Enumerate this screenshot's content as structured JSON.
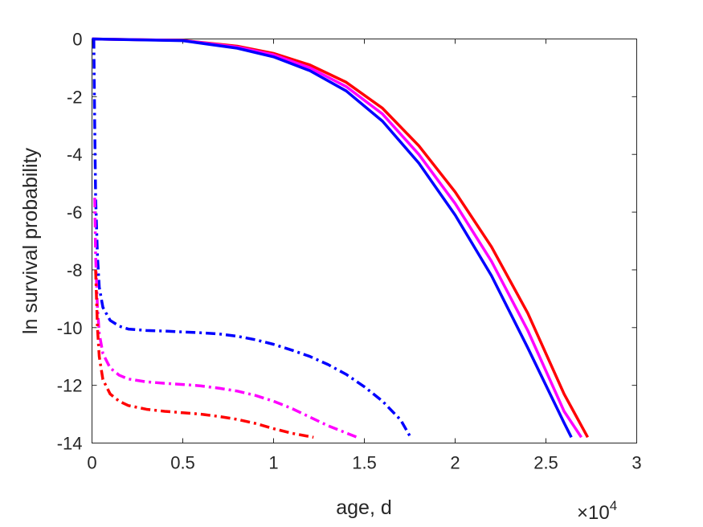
{
  "chart_data": {
    "type": "line",
    "xlabel": "age, d",
    "ylabel": "ln survival probability",
    "x_multiplier": {
      "base": "×10",
      "exponent": "4"
    },
    "xlim": [
      0,
      30000
    ],
    "ylim": [
      -14,
      0
    ],
    "x_ticks": [
      0,
      5000,
      10000,
      15000,
      20000,
      25000,
      30000
    ],
    "x_tick_labels": [
      "0",
      "0.5",
      "1",
      "1.5",
      "2",
      "2.5",
      "3"
    ],
    "y_ticks": [
      0,
      -2,
      -4,
      -6,
      -8,
      -10,
      -12,
      -14
    ],
    "y_tick_labels": [
      "0",
      "-2",
      "-4",
      "-6",
      "-8",
      "-10",
      "-12",
      "-14"
    ],
    "grid": false,
    "series": [
      {
        "color": "#ff0000",
        "style": "solid",
        "x": [
          0,
          5000,
          8000,
          10000,
          12000,
          14000,
          16000,
          18000,
          20000,
          22000,
          24000,
          26000,
          27300
        ],
        "y": [
          0,
          -0.05,
          -0.25,
          -0.5,
          -0.9,
          -1.5,
          -2.4,
          -3.7,
          -5.3,
          -7.2,
          -9.5,
          -12.3,
          -13.8
        ]
      },
      {
        "color": "#ff00ff",
        "style": "solid",
        "x": [
          0,
          5000,
          8000,
          10000,
          12000,
          14000,
          16000,
          18000,
          20000,
          22000,
          24000,
          26000,
          26950
        ],
        "y": [
          0,
          -0.05,
          -0.28,
          -0.55,
          -1.0,
          -1.65,
          -2.6,
          -4.0,
          -5.7,
          -7.7,
          -10.1,
          -12.9,
          -13.8
        ]
      },
      {
        "color": "#0000ff",
        "style": "solid",
        "x": [
          0,
          5000,
          8000,
          10000,
          12000,
          14000,
          16000,
          18000,
          20000,
          22000,
          24000,
          26000,
          26400
        ],
        "y": [
          0,
          -0.06,
          -0.32,
          -0.62,
          -1.1,
          -1.8,
          -2.85,
          -4.3,
          -6.1,
          -8.2,
          -10.7,
          -13.3,
          -13.8
        ]
      },
      {
        "color": "#0000ff",
        "style": "dashdot",
        "x": [
          100,
          150,
          200,
          300,
          400,
          600,
          1000,
          1500,
          2000,
          3000,
          4000,
          5000,
          6000,
          7000,
          8000,
          9000,
          10000,
          11000,
          12000,
          13000,
          14000,
          15000,
          16000,
          17000,
          17500
        ],
        "y": [
          0,
          -3,
          -5.5,
          -7.5,
          -8.6,
          -9.3,
          -9.75,
          -9.95,
          -10.05,
          -10.1,
          -10.12,
          -10.15,
          -10.18,
          -10.22,
          -10.3,
          -10.42,
          -10.58,
          -10.78,
          -11.0,
          -11.28,
          -11.62,
          -12.05,
          -12.55,
          -13.2,
          -13.75
        ]
      },
      {
        "color": "#ff00ff",
        "style": "dashdot",
        "x": [
          150,
          200,
          300,
          400,
          600,
          1000,
          1500,
          2000,
          3000,
          4000,
          5000,
          6000,
          7000,
          8000,
          9000,
          10000,
          11000,
          12000,
          13000,
          14000,
          14600
        ],
        "y": [
          -5.5,
          -7.5,
          -9.3,
          -10.2,
          -10.9,
          -11.4,
          -11.65,
          -11.78,
          -11.88,
          -11.93,
          -11.97,
          -12.02,
          -12.1,
          -12.2,
          -12.35,
          -12.55,
          -12.8,
          -13.1,
          -13.4,
          -13.65,
          -13.8
        ]
      },
      {
        "color": "#ff0000",
        "style": "dashdot",
        "x": [
          200,
          300,
          400,
          600,
          1000,
          1500,
          2000,
          3000,
          4000,
          5000,
          6000,
          7000,
          8000,
          9000,
          10000,
          11000,
          12200
        ],
        "y": [
          -8.0,
          -10.0,
          -11.0,
          -11.8,
          -12.3,
          -12.55,
          -12.7,
          -12.83,
          -12.9,
          -12.95,
          -13.0,
          -13.08,
          -13.18,
          -13.32,
          -13.5,
          -13.66,
          -13.8
        ]
      }
    ]
  }
}
